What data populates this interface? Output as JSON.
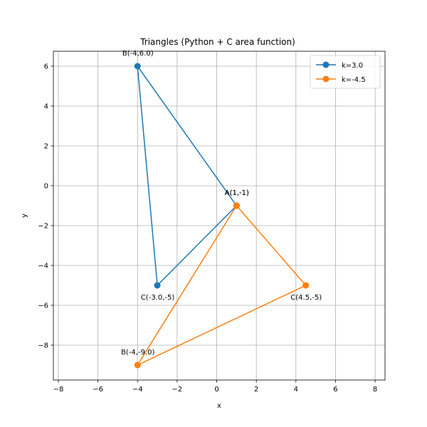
{
  "chart_data": {
    "type": "line",
    "title": "Triangles (Python + C area function)",
    "xlabel": "x",
    "ylabel": "y",
    "xlim": [
      -8.25,
      8.5
    ],
    "ylim": [
      -9.75,
      6.75
    ],
    "xticks": [
      -8,
      -6,
      -4,
      -2,
      0,
      2,
      4,
      6,
      8
    ],
    "yticks": [
      -8,
      -6,
      -4,
      -2,
      0,
      2,
      4,
      6
    ],
    "grid": true,
    "legend_position": "top-right",
    "series": [
      {
        "name": "k=3.0",
        "color": "#1f77b4",
        "points": [
          {
            "x": 1,
            "y": -1,
            "label": "A(1,-1)",
            "label_pos": "above"
          },
          {
            "x": -4,
            "y": 6,
            "label": "B(-4,6.0)",
            "label_pos": "above"
          },
          {
            "x": -3,
            "y": -5,
            "label": "C(-3.0,-5)",
            "label_pos": "below"
          },
          {
            "x": 1,
            "y": -1
          }
        ]
      },
      {
        "name": "k=-4.5",
        "color": "#ff7f0e",
        "points": [
          {
            "x": 1,
            "y": -1,
            "label": "A(1,-1)",
            "label_pos": "above"
          },
          {
            "x": -4,
            "y": -9,
            "label": "B(-4,-9.0)",
            "label_pos": "above"
          },
          {
            "x": 4.5,
            "y": -5,
            "label": "C(4.5,-5)",
            "label_pos": "below"
          },
          {
            "x": 1,
            "y": -1
          }
        ]
      }
    ]
  }
}
